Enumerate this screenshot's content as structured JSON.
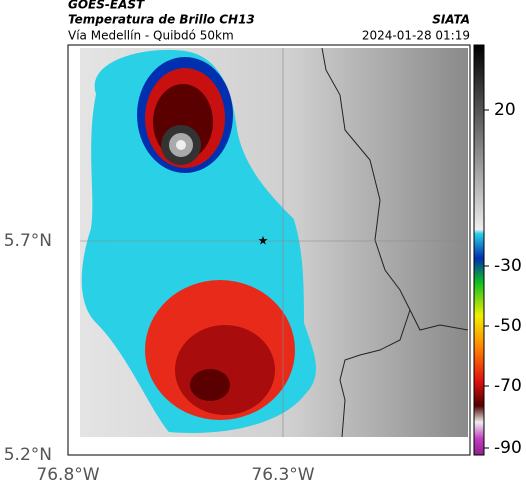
{
  "header": {
    "satellite": "GOES-EAST",
    "product": "Temperatura de Brillo CH13",
    "route": "Vía Medellín - Quibdó 50km",
    "source": "SIATA",
    "datetime": "2024-01-28 01:19"
  },
  "map": {
    "lat_labels": [
      "5.7°N",
      "5.2°N"
    ],
    "lon_labels": [
      "76.8°W",
      "76.3°W"
    ]
  },
  "colorbar": {
    "ticks": [
      20,
      -30,
      -50,
      -70,
      -90
    ]
  }
}
